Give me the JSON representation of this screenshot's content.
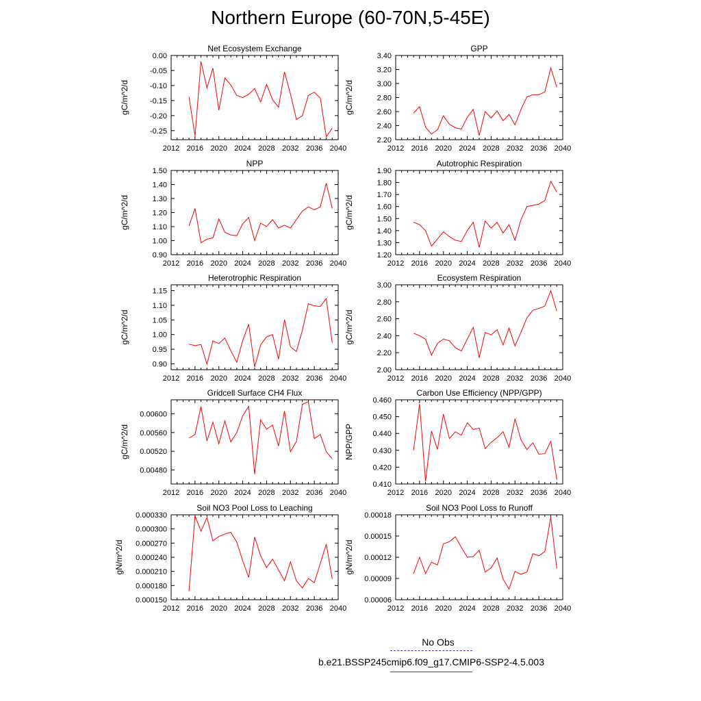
{
  "page": {
    "title": "Northern Europe (60-70N,5-45E)",
    "legend": {
      "obs_label": "No Obs",
      "model_label": "b.e21.BSSP245cmip6.f09_g17.CMIP6-SSP2-4.5.003",
      "obs_color": "#3333cc",
      "model_color": "#ff0000"
    }
  },
  "chart_data": [
    {
      "type": "line",
      "title": "Net Ecosystem Exchange",
      "ylabel": "gC/m^2/d",
      "xlim": [
        2012,
        2040
      ],
      "xticks": [
        "2012",
        "2016",
        "2020",
        "2024",
        "2028",
        "2032",
        "2036",
        "2040"
      ],
      "ylim": [
        -0.28,
        0.0
      ],
      "yticks": [
        "-0.25",
        "-0.20",
        "-0.15",
        "-0.10",
        "-0.05",
        "0.00"
      ],
      "x": [
        2015,
        2016,
        2017,
        2018,
        2019,
        2020,
        2021,
        2022,
        2023,
        2024,
        2025,
        2026,
        2027,
        2028,
        2029,
        2030,
        2031,
        2032,
        2033,
        2034,
        2035,
        2036,
        2037,
        2038,
        2039
      ],
      "series": [
        {
          "color": "#ff0000",
          "values": [
            -0.138,
            -0.268,
            -0.02,
            -0.108,
            -0.042,
            -0.182,
            -0.075,
            -0.098,
            -0.133,
            -0.14,
            -0.129,
            -0.11,
            -0.155,
            -0.096,
            -0.147,
            -0.172,
            -0.055,
            -0.128,
            -0.213,
            -0.2,
            -0.133,
            -0.122,
            -0.142,
            -0.27,
            -0.242
          ]
        }
      ]
    },
    {
      "type": "line",
      "title": "GPP",
      "ylabel": "gC/m^2/d",
      "xlim": [
        2012,
        2040
      ],
      "xticks": [
        "2012",
        "2016",
        "2020",
        "2024",
        "2028",
        "2032",
        "2036",
        "2040"
      ],
      "ylim": [
        2.2,
        3.4
      ],
      "yticks": [
        "2.20",
        "2.40",
        "2.60",
        "2.80",
        "3.00",
        "3.20",
        "3.40"
      ],
      "x": [
        2015,
        2016,
        2017,
        2018,
        2019,
        2020,
        2021,
        2022,
        2023,
        2024,
        2025,
        2026,
        2027,
        2028,
        2029,
        2030,
        2031,
        2032,
        2033,
        2034,
        2035,
        2036,
        2037,
        2038,
        2039
      ],
      "series": [
        {
          "color": "#ff0000",
          "values": [
            2.58,
            2.67,
            2.38,
            2.28,
            2.34,
            2.54,
            2.42,
            2.37,
            2.35,
            2.52,
            2.63,
            2.26,
            2.6,
            2.51,
            2.61,
            2.47,
            2.56,
            2.41,
            2.63,
            2.81,
            2.84,
            2.84,
            2.88,
            3.22,
            2.95
          ]
        }
      ]
    },
    {
      "type": "line",
      "title": "NPP",
      "ylabel": "gC/m^2/d",
      "xlim": [
        2012,
        2040
      ],
      "xticks": [
        "2012",
        "2016",
        "2020",
        "2024",
        "2028",
        "2032",
        "2036",
        "2040"
      ],
      "ylim": [
        0.9,
        1.5
      ],
      "yticks": [
        "0.90",
        "1.00",
        "1.10",
        "1.20",
        "1.30",
        "1.40",
        "1.50"
      ],
      "x": [
        2015,
        2016,
        2017,
        2018,
        2019,
        2020,
        2021,
        2022,
        2023,
        2024,
        2025,
        2026,
        2027,
        2028,
        2029,
        2030,
        2031,
        2032,
        2033,
        2034,
        2035,
        2036,
        2037,
        2038,
        2039
      ],
      "series": [
        {
          "color": "#ff0000",
          "values": [
            1.105,
            1.23,
            0.985,
            1.01,
            1.02,
            1.155,
            1.06,
            1.04,
            1.035,
            1.12,
            1.165,
            1.0,
            1.125,
            1.1,
            1.15,
            1.09,
            1.11,
            1.09,
            1.15,
            1.21,
            1.24,
            1.22,
            1.24,
            1.41,
            1.23
          ]
        }
      ]
    },
    {
      "type": "line",
      "title": "Autotrophic Respiration",
      "ylabel": "gC/m^2/d",
      "xlim": [
        2012,
        2040
      ],
      "xticks": [
        "2012",
        "2016",
        "2020",
        "2024",
        "2028",
        "2032",
        "2036",
        "2040"
      ],
      "ylim": [
        1.2,
        1.9
      ],
      "yticks": [
        "1.20",
        "1.30",
        "1.40",
        "1.50",
        "1.60",
        "1.70",
        "1.80",
        "1.90"
      ],
      "x": [
        2015,
        2016,
        2017,
        2018,
        2019,
        2020,
        2021,
        2022,
        2023,
        2024,
        2025,
        2026,
        2027,
        2028,
        2029,
        2030,
        2031,
        2032,
        2033,
        2034,
        2035,
        2036,
        2037,
        2038,
        2039
      ],
      "series": [
        {
          "color": "#ff0000",
          "values": [
            1.47,
            1.45,
            1.4,
            1.27,
            1.33,
            1.39,
            1.35,
            1.32,
            1.31,
            1.4,
            1.47,
            1.26,
            1.48,
            1.42,
            1.47,
            1.38,
            1.45,
            1.32,
            1.49,
            1.6,
            1.61,
            1.62,
            1.65,
            1.81,
            1.72
          ]
        }
      ]
    },
    {
      "type": "line",
      "title": "Heterotrophic Respiration",
      "ylabel": "gC/m^2/d",
      "xlim": [
        2012,
        2040
      ],
      "xticks": [
        "2012",
        "2016",
        "2020",
        "2024",
        "2028",
        "2032",
        "2036",
        "2040"
      ],
      "ylim": [
        0.88,
        1.17
      ],
      "yticks": [
        "0.90",
        "0.95",
        "1.00",
        "1.05",
        "1.10",
        "1.15"
      ],
      "x": [
        2015,
        2016,
        2017,
        2018,
        2019,
        2020,
        2021,
        2022,
        2023,
        2024,
        2025,
        2026,
        2027,
        2028,
        2029,
        2030,
        2031,
        2032,
        2033,
        2034,
        2035,
        2036,
        2037,
        2038,
        2039
      ],
      "series": [
        {
          "color": "#ff0000",
          "values": [
            0.967,
            0.962,
            0.966,
            0.899,
            0.978,
            0.969,
            0.988,
            0.945,
            0.905,
            0.98,
            1.035,
            0.889,
            0.965,
            0.992,
            1.0,
            0.916,
            1.051,
            0.958,
            0.942,
            1.015,
            1.105,
            1.098,
            1.096,
            1.123,
            0.972
          ]
        }
      ]
    },
    {
      "type": "line",
      "title": "Ecosystem Respiration",
      "ylabel": "gC/m^2/d",
      "xlim": [
        2012,
        2040
      ],
      "xticks": [
        "2012",
        "2016",
        "2020",
        "2024",
        "2028",
        "2032",
        "2036",
        "2040"
      ],
      "ylim": [
        2.0,
        3.0
      ],
      "yticks": [
        "2.00",
        "2.20",
        "2.40",
        "2.60",
        "2.80",
        "3.00"
      ],
      "x": [
        2015,
        2016,
        2017,
        2018,
        2019,
        2020,
        2021,
        2022,
        2023,
        2024,
        2025,
        2026,
        2027,
        2028,
        2029,
        2030,
        2031,
        2032,
        2033,
        2034,
        2035,
        2036,
        2037,
        2038,
        2039
      ],
      "series": [
        {
          "color": "#ff0000",
          "values": [
            2.43,
            2.4,
            2.36,
            2.17,
            2.31,
            2.36,
            2.34,
            2.26,
            2.22,
            2.36,
            2.5,
            2.14,
            2.44,
            2.41,
            2.47,
            2.29,
            2.49,
            2.28,
            2.44,
            2.61,
            2.7,
            2.72,
            2.75,
            2.93,
            2.69
          ]
        }
      ]
    },
    {
      "type": "line",
      "title": "Gridcell Surface CH4 Flux",
      "ylabel": "gC/m^2/d",
      "xlim": [
        2012,
        2040
      ],
      "xticks": [
        "2012",
        "2016",
        "2020",
        "2024",
        "2028",
        "2032",
        "2036",
        "2040"
      ],
      "ylim": [
        0.0045,
        0.0063
      ],
      "yticks": [
        "0.00480",
        "0.00520",
        "0.00560",
        "0.00600"
      ],
      "x": [
        2015,
        2016,
        2017,
        2018,
        2019,
        2020,
        2021,
        2022,
        2023,
        2024,
        2025,
        2026,
        2027,
        2028,
        2029,
        2030,
        2031,
        2032,
        2033,
        2034,
        2035,
        2036,
        2037,
        2038,
        2039
      ],
      "series": [
        {
          "color": "#ff0000",
          "values": [
            0.00548,
            0.00556,
            0.00616,
            0.00542,
            0.00582,
            0.00536,
            0.00585,
            0.0054,
            0.0056,
            0.00596,
            0.00616,
            0.00471,
            0.00587,
            0.00567,
            0.00576,
            0.00531,
            0.00606,
            0.00519,
            0.00541,
            0.0062,
            0.00626,
            0.00547,
            0.00556,
            0.00519,
            0.00504
          ]
        }
      ]
    },
    {
      "type": "line",
      "title": "Carbon Use Efficiency (NPP/GPP)",
      "ylabel": "NPP/GPP",
      "xlim": [
        2012,
        2040
      ],
      "xticks": [
        "2012",
        "2016",
        "2020",
        "2024",
        "2028",
        "2032",
        "2036",
        "2040"
      ],
      "ylim": [
        0.41,
        0.46
      ],
      "yticks": [
        "0.410",
        "0.420",
        "0.430",
        "0.440",
        "0.450",
        "0.460"
      ],
      "x": [
        2015,
        2016,
        2017,
        2018,
        2019,
        2020,
        2021,
        2022,
        2023,
        2024,
        2025,
        2026,
        2027,
        2028,
        2029,
        2030,
        2031,
        2032,
        2033,
        2034,
        2035,
        2036,
        2037,
        2038,
        2039
      ],
      "series": [
        {
          "color": "#ff0000",
          "values": [
            0.43,
            0.4575,
            0.4115,
            0.4415,
            0.4305,
            0.4515,
            0.437,
            0.441,
            0.439,
            0.4463,
            0.4424,
            0.4432,
            0.431,
            0.4347,
            0.4375,
            0.441,
            0.4318,
            0.4488,
            0.4362,
            0.4304,
            0.4345,
            0.4277,
            0.428,
            0.4354,
            0.4126
          ]
        }
      ]
    },
    {
      "type": "line",
      "title": "Soil NO3 Pool Loss to Leaching",
      "ylabel": "gN/m^2/d",
      "xlim": [
        2012,
        2040
      ],
      "xticks": [
        "2012",
        "2016",
        "2020",
        "2024",
        "2028",
        "2032",
        "2036",
        "2040"
      ],
      "ylim": [
        0.00015,
        0.00033
      ],
      "yticks": [
        "0.000150",
        "0.000180",
        "0.000210",
        "0.000240",
        "0.000270",
        "0.000300",
        "0.000330"
      ],
      "x": [
        2015,
        2016,
        2017,
        2018,
        2019,
        2020,
        2021,
        2022,
        2023,
        2024,
        2025,
        2026,
        2027,
        2028,
        2029,
        2030,
        2031,
        2032,
        2033,
        2034,
        2035,
        2036,
        2037,
        2038,
        2039
      ],
      "series": [
        {
          "color": "#ff0000",
          "values": [
            0.000168,
            0.000328,
            0.000295,
            0.000324,
            0.000275,
            0.000284,
            0.000289,
            0.000293,
            0.000272,
            0.000232,
            0.000197,
            0.000283,
            0.000243,
            0.000218,
            0.000236,
            0.000213,
            0.00019,
            0.00023,
            0.00019,
            0.000175,
            0.000195,
            0.000186,
            0.000227,
            0.000268,
            0.000194
          ]
        }
      ]
    },
    {
      "type": "line",
      "title": "Soil NO3 Pool Loss to Runoff",
      "ylabel": "gN/m^2/d",
      "xlim": [
        2012,
        2040
      ],
      "xticks": [
        "2012",
        "2016",
        "2020",
        "2024",
        "2028",
        "2032",
        "2036",
        "2040"
      ],
      "ylim": [
        6e-05,
        0.00018
      ],
      "yticks": [
        "0.00006",
        "0.00009",
        "0.00012",
        "0.00015",
        "0.00018"
      ],
      "x": [
        2015,
        2016,
        2017,
        2018,
        2019,
        2020,
        2021,
        2022,
        2023,
        2024,
        2025,
        2026,
        2027,
        2028,
        2029,
        2030,
        2031,
        2032,
        2033,
        2034,
        2035,
        2036,
        2037,
        2038,
        2039
      ],
      "series": [
        {
          "color": "#ff0000",
          "values": [
            9.7e-05,
            0.00012,
            9.7e-05,
            0.000113,
            0.000109,
            0.000139,
            0.000142,
            0.000149,
            0.000134,
            0.00012,
            0.000121,
            0.00013,
            9.9e-05,
            0.000105,
            0.000119,
            8.9e-05,
            7.5e-05,
            0.0001,
            9.6e-05,
            9.9e-05,
            0.000125,
            0.000122,
            0.000128,
            0.000177,
            0.000104
          ]
        }
      ]
    }
  ]
}
